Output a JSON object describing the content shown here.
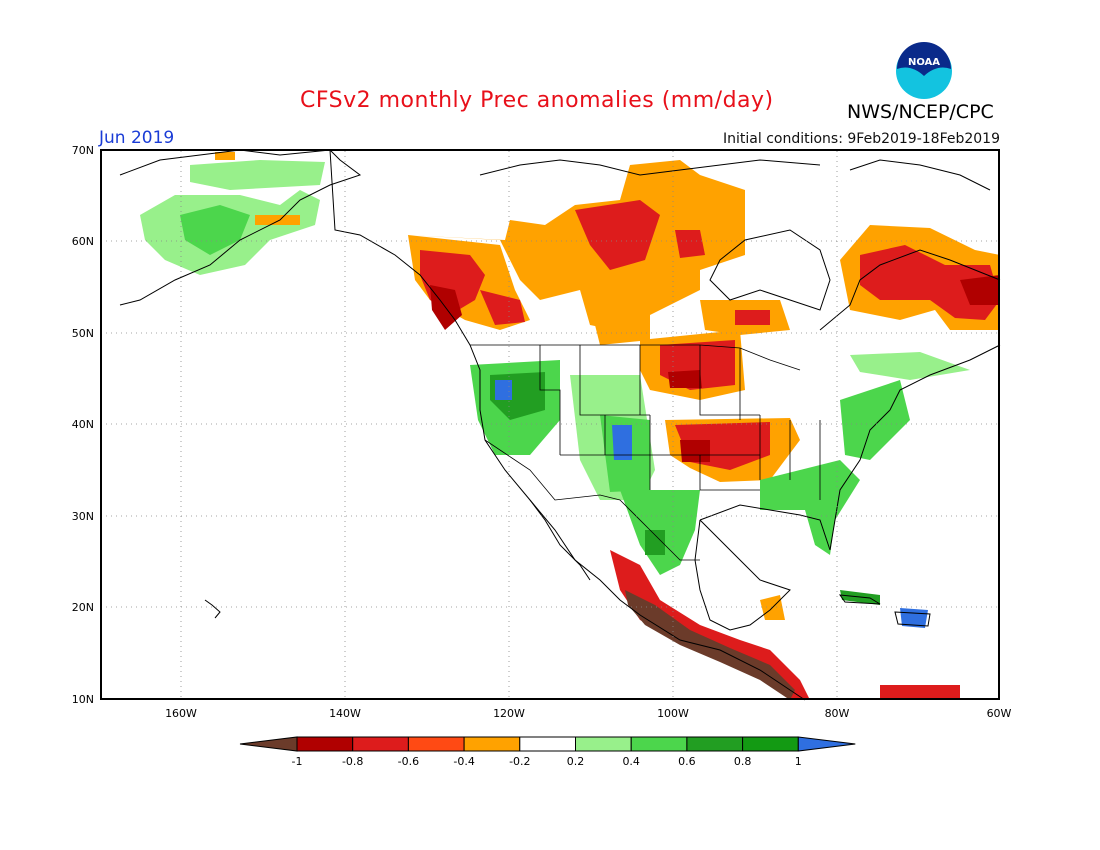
{
  "header": {
    "title": "CFSv2 monthly Prec anomalies (mm/day)",
    "agency": "NWS/NCEP/CPC",
    "month": "Jun 2019",
    "initial_conditions": "Initial conditions: 9Feb2019-18Feb2019"
  },
  "logo": {
    "icon": "noaa-logo-icon",
    "text": "NOAA"
  },
  "axes": {
    "lat_labels": [
      "70N",
      "60N",
      "50N",
      "40N",
      "30N",
      "20N",
      "10N"
    ],
    "lon_labels": [
      "160W",
      "140W",
      "120W",
      "100W",
      "80W",
      "60W"
    ]
  },
  "colorbar": {
    "labels": [
      "-1",
      "-0.8",
      "-0.6",
      "-0.4",
      "-0.2",
      "0.2",
      "0.4",
      "0.6",
      "0.8",
      "1"
    ],
    "colors": [
      "#6b3b2a",
      "#b00000",
      "#dd1c1c",
      "#ff4a14",
      "#ffa200",
      "#ffffff",
      "#98f08b",
      "#4cd64c",
      "#229e22",
      "#139a13",
      "#2f6fe0"
    ]
  }
}
